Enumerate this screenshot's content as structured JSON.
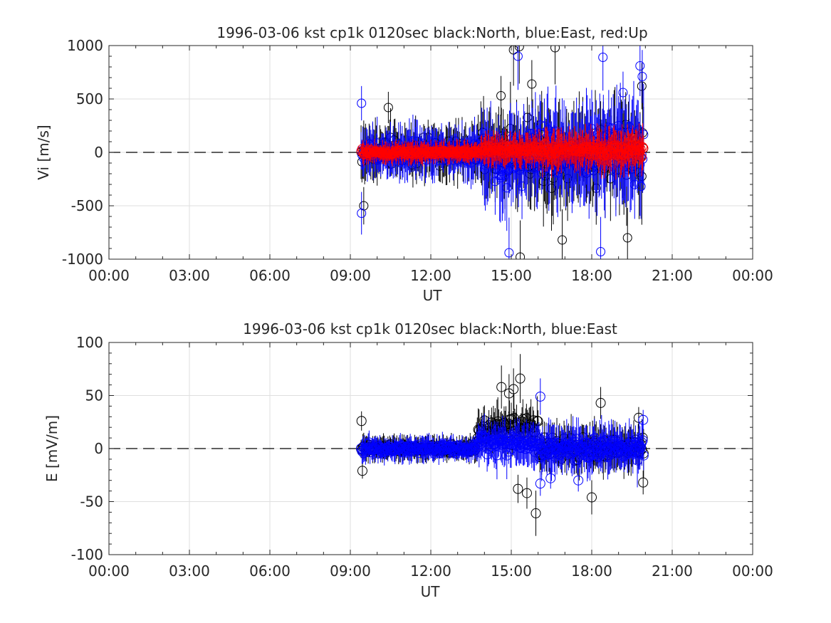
{
  "chart_data": [
    {
      "type": "scatter",
      "title": "1996-03-06 kst cp1k 0120sec black:North, blue:East, red:Up",
      "xlabel": "UT",
      "ylabel": "Vi [m/s]",
      "xlim": [
        "00:00",
        "24:00"
      ],
      "ylim": [
        -1000,
        1000
      ],
      "x_ticks": [
        "00:00",
        "03:00",
        "06:00",
        "09:00",
        "12:00",
        "15:00",
        "18:00",
        "21:00",
        "00:00"
      ],
      "y_ticks": [
        "-1000",
        "-500",
        "0",
        "500",
        "1000"
      ],
      "grid": true,
      "zero_line": "dashed",
      "marker": "open-circle-with-errorbars",
      "time_range": [
        "09:24",
        "19:58"
      ],
      "series": [
        {
          "color": "#000000",
          "phases": [
            {
              "from": "09:24",
              "to": "13:50",
              "center": 0,
              "spread": 180,
              "error": 220
            },
            {
              "from": "13:50",
              "to": "16:00",
              "center": 0,
              "spread": 420,
              "error": 350
            },
            {
              "from": "16:00",
              "to": "19:58",
              "center": 0,
              "spread": 470,
              "error": 380
            }
          ],
          "extremes": [
            {
              "x": "14:37",
              "y": 530
            },
            {
              "x": "15:05",
              "y": 960
            },
            {
              "x": "15:18",
              "y": 990
            },
            {
              "x": "15:46",
              "y": 640
            },
            {
              "x": "16:38",
              "y": 980
            },
            {
              "x": "15:20",
              "y": -980
            },
            {
              "x": "16:54",
              "y": -820
            },
            {
              "x": "19:20",
              "y": -800
            },
            {
              "x": "19:52",
              "y": 620
            },
            {
              "x": "09:30",
              "y": -500
            },
            {
              "x": "10:25",
              "y": 420
            }
          ]
        },
        {
          "color": "#0000ff",
          "phases": [
            {
              "from": "09:24",
              "to": "13:50",
              "center": 0,
              "spread": 150,
              "error": 200
            },
            {
              "from": "13:50",
              "to": "16:00",
              "center": -50,
              "spread": 430,
              "error": 350
            },
            {
              "from": "16:00",
              "to": "19:58",
              "center": 0,
              "spread": 450,
              "error": 380
            }
          ],
          "extremes": [
            {
              "x": "09:25",
              "y": 460
            },
            {
              "x": "09:25",
              "y": -570
            },
            {
              "x": "14:55",
              "y": -940
            },
            {
              "x": "15:15",
              "y": 900
            },
            {
              "x": "18:20",
              "y": -930
            },
            {
              "x": "18:25",
              "y": 890
            },
            {
              "x": "19:48",
              "y": 810
            },
            {
              "x": "19:53",
              "y": 710
            },
            {
              "x": "19:10",
              "y": 560
            }
          ]
        },
        {
          "color": "#ff0000",
          "phases": [
            {
              "from": "09:24",
              "to": "13:50",
              "center": 0,
              "spread": 50,
              "error": 90
            },
            {
              "from": "13:50",
              "to": "16:00",
              "center": 20,
              "spread": 80,
              "error": 140
            },
            {
              "from": "16:00",
              "to": "19:58",
              "center": 20,
              "spread": 110,
              "error": 180
            }
          ],
          "extremes": []
        }
      ]
    },
    {
      "type": "scatter",
      "title": "1996-03-06 kst cp1k 0120sec black:North, blue:East",
      "xlabel": "UT",
      "ylabel": "E [mV/m]",
      "xlim": [
        "00:00",
        "24:00"
      ],
      "ylim": [
        -100,
        100
      ],
      "x_ticks": [
        "00:00",
        "03:00",
        "06:00",
        "09:00",
        "12:00",
        "15:00",
        "18:00",
        "21:00",
        "00:00"
      ],
      "y_ticks": [
        "-100",
        "-50",
        "0",
        "50",
        "100"
      ],
      "grid": true,
      "zero_line": "dashed",
      "marker": "open-circle-with-errorbars",
      "time_range": [
        "09:24",
        "19:58"
      ],
      "series": [
        {
          "color": "#000000",
          "phases": [
            {
              "from": "09:24",
              "to": "13:40",
              "center": 0,
              "spread": 6,
              "error": 10
            },
            {
              "from": "13:40",
              "to": "16:00",
              "center": 18,
              "spread": 20,
              "error": 18
            },
            {
              "from": "16:00",
              "to": "19:58",
              "center": 0,
              "spread": 18,
              "error": 18
            }
          ],
          "extremes": [
            {
              "x": "09:25",
              "y": 26
            },
            {
              "x": "09:27",
              "y": -21
            },
            {
              "x": "14:38",
              "y": 58
            },
            {
              "x": "14:55",
              "y": 52
            },
            {
              "x": "15:05",
              "y": 56
            },
            {
              "x": "15:20",
              "y": 66
            },
            {
              "x": "15:55",
              "y": -61
            },
            {
              "x": "15:15",
              "y": -38
            },
            {
              "x": "15:35",
              "y": -42
            },
            {
              "x": "18:00",
              "y": -46
            },
            {
              "x": "18:20",
              "y": 43
            },
            {
              "x": "19:45",
              "y": 29
            },
            {
              "x": "19:55",
              "y": -32
            }
          ]
        },
        {
          "color": "#0000ff",
          "phases": [
            {
              "from": "09:24",
              "to": "13:40",
              "center": 0,
              "spread": 7,
              "error": 10
            },
            {
              "from": "13:40",
              "to": "16:00",
              "center": 5,
              "spread": 15,
              "error": 18
            },
            {
              "from": "16:00",
              "to": "19:58",
              "center": 0,
              "spread": 15,
              "error": 20
            }
          ],
          "extremes": [
            {
              "x": "16:05",
              "y": 49
            },
            {
              "x": "16:05",
              "y": -33
            },
            {
              "x": "16:28",
              "y": -28
            },
            {
              "x": "17:30",
              "y": -30
            },
            {
              "x": "19:55",
              "y": 27
            }
          ]
        }
      ]
    }
  ]
}
